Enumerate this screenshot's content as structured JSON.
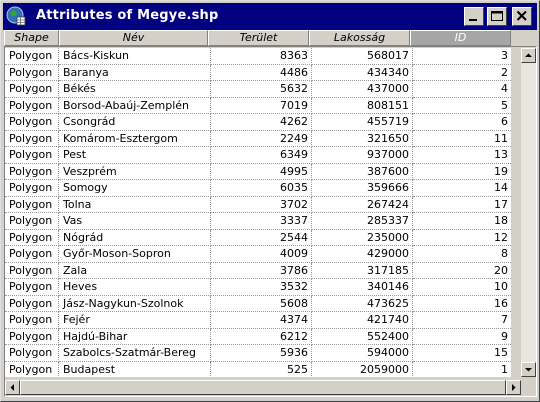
{
  "window": {
    "title": "Attributes of Megye.shp",
    "icon": "globe-table-icon"
  },
  "columns": [
    {
      "label": "Shape",
      "sorted": false
    },
    {
      "label": "Név",
      "sorted": false
    },
    {
      "label": "Terület",
      "sorted": false
    },
    {
      "label": "Lakosság",
      "sorted": false
    },
    {
      "label": "ID",
      "sorted": true
    }
  ],
  "rows": [
    [
      "Polygon",
      "Bács-Kiskun",
      "8363",
      "568017",
      "3"
    ],
    [
      "Polygon",
      "Baranya",
      "4486",
      "434340",
      "2"
    ],
    [
      "Polygon",
      "Békés",
      "5632",
      "437000",
      "4"
    ],
    [
      "Polygon",
      "Borsod-Abaúj-Zemplén",
      "7019",
      "808151",
      "5"
    ],
    [
      "Polygon",
      "Csongrád",
      "4262",
      "455719",
      "6"
    ],
    [
      "Polygon",
      "Komárom-Esztergom",
      "2249",
      "321650",
      "11"
    ],
    [
      "Polygon",
      "Pest",
      "6349",
      "937000",
      "13"
    ],
    [
      "Polygon",
      "Veszprém",
      "4995",
      "387600",
      "19"
    ],
    [
      "Polygon",
      "Somogy",
      "6035",
      "359666",
      "14"
    ],
    [
      "Polygon",
      "Tolna",
      "3702",
      "267424",
      "17"
    ],
    [
      "Polygon",
      "Vas",
      "3337",
      "285337",
      "18"
    ],
    [
      "Polygon",
      "Nógrád",
      "2544",
      "235000",
      "12"
    ],
    [
      "Polygon",
      "Győr-Moson-Sopron",
      "4009",
      "429000",
      "8"
    ],
    [
      "Polygon",
      "Zala",
      "3786",
      "317185",
      "20"
    ],
    [
      "Polygon",
      "Heves",
      "3532",
      "340146",
      "10"
    ],
    [
      "Polygon",
      "Jász-Nagykun-Szolnok",
      "5608",
      "473625",
      "16"
    ],
    [
      "Polygon",
      "Fejér",
      "4374",
      "421740",
      "7"
    ],
    [
      "Polygon",
      "Hajdú-Bihar",
      "6212",
      "552400",
      "9"
    ],
    [
      "Polygon",
      "Szabolcs-Szatmár-Bereg",
      "5936",
      "594000",
      "15"
    ],
    [
      "Polygon",
      "Budapest",
      "525",
      "2059000",
      "1"
    ]
  ],
  "colors": {
    "titlebar": "#000080",
    "face": "#d4d0c8",
    "sorted_header": "#a6a6a6"
  }
}
